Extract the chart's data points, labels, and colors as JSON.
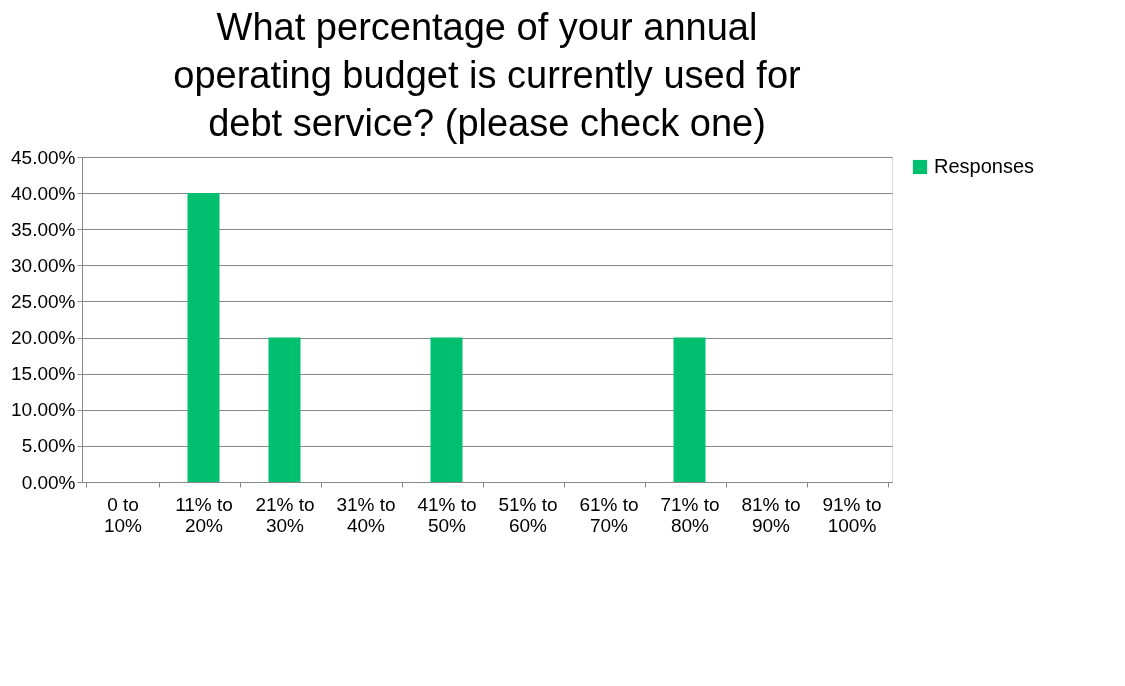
{
  "chart_data": {
    "type": "bar",
    "title": "What percentage of your annual operating budget is currently used for debt service?  (please check one)",
    "categories": [
      "0 to 10%",
      "11% to 20%",
      "21% to 30%",
      "31% to 40%",
      "41% to 50%",
      "51% to 60%",
      "61% to 70%",
      "71% to 80%",
      "81% to 90%",
      "91% to 100%"
    ],
    "series": [
      {
        "name": "Responses",
        "color": "#00c070",
        "values": [
          0,
          40,
          20,
          0,
          20,
          0,
          0,
          20,
          0,
          0
        ]
      }
    ],
    "ylim": [
      0,
      45
    ],
    "yticks": [
      {
        "value": 0,
        "label": "0.00%"
      },
      {
        "value": 5,
        "label": "5.00%"
      },
      {
        "value": 10,
        "label": "10.00%"
      },
      {
        "value": 15,
        "label": "15.00%"
      },
      {
        "value": 20,
        "label": "20.00%"
      },
      {
        "value": 25,
        "label": "25.00%"
      },
      {
        "value": 30,
        "label": "30.00%"
      },
      {
        "value": 35,
        "label": "35.00%"
      },
      {
        "value": 40,
        "label": "40.00%"
      },
      {
        "value": 45,
        "label": "45.00%"
      }
    ],
    "grid": "y",
    "legend": "right"
  }
}
